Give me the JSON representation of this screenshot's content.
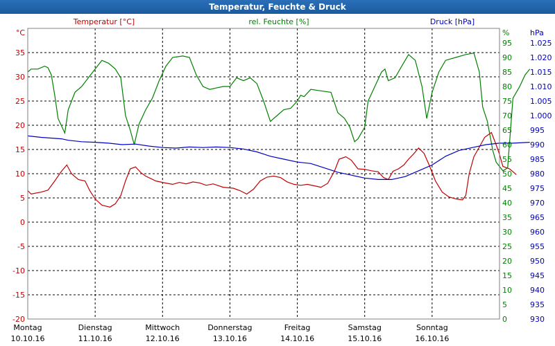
{
  "window": {
    "title": "Temperatur, Feuchte & Druck"
  },
  "colors": {
    "temperature": "#c00000",
    "humidity": "#008000",
    "pressure": "#0000c0",
    "grid": "#000000",
    "title_bar": "#1f63aa"
  },
  "chart_data": {
    "type": "line",
    "title": "Temperatur, Feuchte & Druck",
    "grid": true,
    "x_labels": [
      {
        "day": "Montag",
        "date": "10.10.16"
      },
      {
        "day": "Dienstag",
        "date": "11.10.16"
      },
      {
        "day": "Mittwoch",
        "date": "12.10.16"
      },
      {
        "day": "Donnerstag",
        "date": "13.10.16"
      },
      {
        "day": "Freitag",
        "date": "14.10.16"
      },
      {
        "day": "Samstag",
        "date": "15.10.16"
      },
      {
        "day": "Sonntag",
        "date": "16.10.16"
      }
    ],
    "x_range_days": [
      0,
      7
    ],
    "axes": {
      "temperature": {
        "unit": "°C",
        "label": "Temperatur [°C]",
        "range": [
          -20,
          40
        ],
        "ticks": [
          "-20",
          "-15",
          "-10",
          "-5",
          "0",
          "5",
          "10",
          "15",
          "20",
          "25",
          "30",
          "35"
        ]
      },
      "humidity": {
        "unit": "%",
        "label": "rel. Feuchte [%]",
        "range": [
          0,
          100
        ],
        "ticks": [
          "0",
          "5",
          "10",
          "15",
          "20",
          "25",
          "30",
          "35",
          "40",
          "45",
          "50",
          "55",
          "60",
          "65",
          "70",
          "75",
          "80",
          "85",
          "90",
          "95"
        ]
      },
      "pressure": {
        "unit": "hPa",
        "label": "Druck [hPa]",
        "range": [
          930,
          1030
        ],
        "ticks": [
          "930",
          "935",
          "940",
          "945",
          "950",
          "955",
          "960",
          "965",
          "970",
          "975",
          "980",
          "985",
          "990",
          "995",
          "1.000",
          "1.005",
          "1.010",
          "1.015",
          "1.020",
          "1.025"
        ]
      }
    },
    "series": [
      {
        "name": "Temperatur [°C]",
        "axis": "temperature",
        "points": [
          [
            0,
            6.5
          ],
          [
            0.05,
            5.8
          ],
          [
            0.2,
            6.2
          ],
          [
            0.3,
            6.6
          ],
          [
            0.4,
            8.5
          ],
          [
            0.5,
            10.5
          ],
          [
            0.58,
            11.8
          ],
          [
            0.65,
            10
          ],
          [
            0.75,
            8.8
          ],
          [
            0.85,
            8.5
          ],
          [
            0.92,
            6.5
          ],
          [
            1.0,
            4.8
          ],
          [
            1.1,
            3.5
          ],
          [
            1.22,
            3.1
          ],
          [
            1.3,
            3.8
          ],
          [
            1.38,
            5.5
          ],
          [
            1.45,
            8.5
          ],
          [
            1.52,
            11
          ],
          [
            1.6,
            11.4
          ],
          [
            1.68,
            10.2
          ],
          [
            1.75,
            9.5
          ],
          [
            1.9,
            8.5
          ],
          [
            2.0,
            8.2
          ],
          [
            2.15,
            7.8
          ],
          [
            2.25,
            8.2
          ],
          [
            2.35,
            7.9
          ],
          [
            2.45,
            8.3
          ],
          [
            2.55,
            8.1
          ],
          [
            2.65,
            7.6
          ],
          [
            2.75,
            7.9
          ],
          [
            2.9,
            7.2
          ],
          [
            3.05,
            7.0
          ],
          [
            3.15,
            6.5
          ],
          [
            3.25,
            5.8
          ],
          [
            3.35,
            6.8
          ],
          [
            3.45,
            8.5
          ],
          [
            3.55,
            9.3
          ],
          [
            3.65,
            9.5
          ],
          [
            3.75,
            9.2
          ],
          [
            3.85,
            8.3
          ],
          [
            3.95,
            7.8
          ],
          [
            4.05,
            7.6
          ],
          [
            4.15,
            7.8
          ],
          [
            4.25,
            7.5
          ],
          [
            4.35,
            7.2
          ],
          [
            4.45,
            8.0
          ],
          [
            4.55,
            10.5
          ],
          [
            4.62,
            13.0
          ],
          [
            4.72,
            13.5
          ],
          [
            4.8,
            12.8
          ],
          [
            4.9,
            11.0
          ],
          [
            5.0,
            10.9
          ],
          [
            5.1,
            10.6
          ],
          [
            5.2,
            10.4
          ],
          [
            5.28,
            9.2
          ],
          [
            5.35,
            8.8
          ],
          [
            5.42,
            10.5
          ],
          [
            5.5,
            11.0
          ],
          [
            5.58,
            11.8
          ],
          [
            5.65,
            13.0
          ],
          [
            5.72,
            14.0
          ],
          [
            5.8,
            15.3
          ],
          [
            5.88,
            14.2
          ],
          [
            5.95,
            12.0
          ],
          [
            6.05,
            8.5
          ],
          [
            6.15,
            6.2
          ],
          [
            6.25,
            5.2
          ],
          [
            6.35,
            4.8
          ],
          [
            6.45,
            4.6
          ],
          [
            6.5,
            5.5
          ],
          [
            6.55,
            10.0
          ],
          [
            6.62,
            13.5
          ],
          [
            6.7,
            15.5
          ],
          [
            6.78,
            17.5
          ],
          [
            6.88,
            18.5
          ],
          [
            6.95,
            16.0
          ],
          [
            7.0,
            14.0
          ],
          [
            7.05,
            11.5
          ],
          [
            7.15,
            11.0
          ],
          [
            7.25,
            9.8
          ]
        ]
      },
      {
        "name": "rel. Feuchte [%]",
        "axis": "humidity",
        "points": [
          [
            0,
            85
          ],
          [
            0.05,
            86
          ],
          [
            0.15,
            86
          ],
          [
            0.25,
            87
          ],
          [
            0.3,
            86.5
          ],
          [
            0.35,
            84
          ],
          [
            0.4,
            77
          ],
          [
            0.45,
            69
          ],
          [
            0.55,
            64
          ],
          [
            0.6,
            72
          ],
          [
            0.7,
            78
          ],
          [
            0.8,
            80
          ],
          [
            0.9,
            83
          ],
          [
            1.0,
            86
          ],
          [
            1.1,
            89
          ],
          [
            1.2,
            88
          ],
          [
            1.3,
            86
          ],
          [
            1.38,
            83
          ],
          [
            1.45,
            70
          ],
          [
            1.52,
            65
          ],
          [
            1.58,
            60
          ],
          [
            1.65,
            67
          ],
          [
            1.75,
            72
          ],
          [
            1.85,
            76
          ],
          [
            1.95,
            82
          ],
          [
            2.05,
            87
          ],
          [
            2.15,
            90
          ],
          [
            2.3,
            90.5
          ],
          [
            2.4,
            90
          ],
          [
            2.5,
            84
          ],
          [
            2.6,
            80
          ],
          [
            2.7,
            79
          ],
          [
            2.8,
            79.5
          ],
          [
            2.9,
            80
          ],
          [
            3.0,
            80
          ],
          [
            3.1,
            83
          ],
          [
            3.2,
            82
          ],
          [
            3.3,
            83
          ],
          [
            3.4,
            81
          ],
          [
            3.5,
            75
          ],
          [
            3.6,
            68
          ],
          [
            3.7,
            70
          ],
          [
            3.8,
            72
          ],
          [
            3.9,
            72.5
          ],
          [
            4.0,
            75
          ],
          [
            4.05,
            77
          ],
          [
            4.1,
            76.5
          ],
          [
            4.2,
            79
          ],
          [
            4.35,
            78.5
          ],
          [
            4.5,
            78
          ],
          [
            4.6,
            71
          ],
          [
            4.7,
            69
          ],
          [
            4.78,
            66
          ],
          [
            4.85,
            61
          ],
          [
            4.9,
            62
          ],
          [
            5.0,
            66
          ],
          [
            5.05,
            75
          ],
          [
            5.15,
            80
          ],
          [
            5.25,
            85
          ],
          [
            5.3,
            86
          ],
          [
            5.35,
            82
          ],
          [
            5.45,
            83
          ],
          [
            5.55,
            87
          ],
          [
            5.65,
            91
          ],
          [
            5.75,
            89
          ],
          [
            5.85,
            80
          ],
          [
            5.92,
            69
          ],
          [
            6.0,
            78
          ],
          [
            6.1,
            85
          ],
          [
            6.2,
            89
          ],
          [
            6.35,
            90
          ],
          [
            6.5,
            91
          ],
          [
            6.62,
            91.5
          ],
          [
            6.7,
            85
          ],
          [
            6.75,
            73
          ],
          [
            6.82,
            68
          ],
          [
            6.9,
            58
          ],
          [
            6.95,
            54
          ],
          [
            7.05,
            51
          ],
          [
            7.12,
            52
          ],
          [
            7.2,
            76
          ],
          [
            7.3,
            80
          ],
          [
            7.38,
            84
          ],
          [
            7.45,
            86
          ]
        ]
      },
      {
        "name": "Druck [hPa]",
        "axis": "pressure",
        "points": [
          [
            0,
            993
          ],
          [
            0.2,
            992.5
          ],
          [
            0.5,
            992
          ],
          [
            0.6,
            991.5
          ],
          [
            0.8,
            991
          ],
          [
            1.0,
            990.8
          ],
          [
            1.2,
            990.5
          ],
          [
            1.4,
            990
          ],
          [
            1.6,
            990.2
          ],
          [
            1.8,
            989.5
          ],
          [
            2.0,
            989
          ],
          [
            2.2,
            988.8
          ],
          [
            2.4,
            989.2
          ],
          [
            2.6,
            989
          ],
          [
            2.8,
            989.2
          ],
          [
            3.0,
            989
          ],
          [
            3.2,
            988.5
          ],
          [
            3.4,
            987.5
          ],
          [
            3.6,
            986
          ],
          [
            3.8,
            985
          ],
          [
            4.0,
            984
          ],
          [
            4.2,
            983.5
          ],
          [
            4.4,
            982
          ],
          [
            4.6,
            980.5
          ],
          [
            4.8,
            979.5
          ],
          [
            5.0,
            978.5
          ],
          [
            5.2,
            978
          ],
          [
            5.4,
            978
          ],
          [
            5.6,
            979
          ],
          [
            5.8,
            981
          ],
          [
            6.0,
            983
          ],
          [
            6.2,
            986
          ],
          [
            6.4,
            988
          ],
          [
            6.6,
            989
          ],
          [
            6.8,
            990
          ],
          [
            7.0,
            990.5
          ],
          [
            7.2,
            990.5
          ],
          [
            7.45,
            990.8
          ]
        ]
      }
    ]
  }
}
